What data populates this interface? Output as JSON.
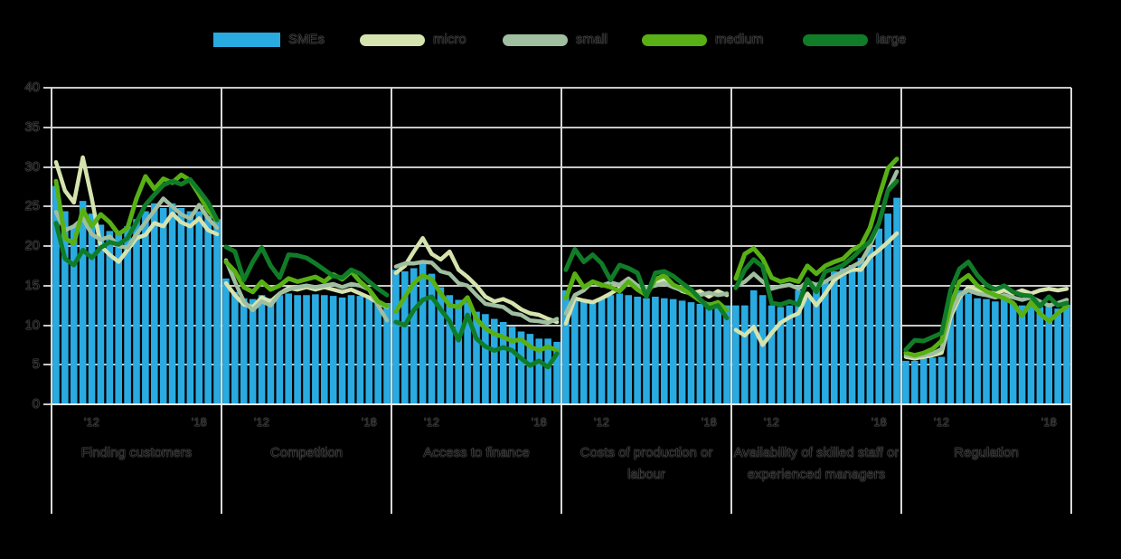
{
  "legend": [
    {
      "label": "SMEs",
      "color": "#29ABE2",
      "type": "bar"
    },
    {
      "label": "micro",
      "color": "#D5E3AE",
      "type": "line"
    },
    {
      "label": "small",
      "color": "#9FBFA0",
      "type": "line"
    },
    {
      "label": "medium",
      "color": "#58B014",
      "type": "line"
    },
    {
      "label": "large",
      "color": "#107C28",
      "type": "line"
    }
  ],
  "colors": {
    "bars": "#29ABE2",
    "micro": "#D5E3AE",
    "small": "#9FBFA0",
    "medium": "#58B014",
    "large": "#107C28",
    "gridline": "#C9C9C9",
    "separator": "#D8D8D8",
    "baseline": "#ECECEC"
  },
  "y_axis": {
    "min": 0,
    "max": 40,
    "step": 5,
    "labels": [
      40,
      35,
      30,
      25,
      20,
      15,
      10,
      5,
      0
    ]
  },
  "x_ticks": [
    {
      "label": "'12",
      "point_index": 4
    },
    {
      "label": "'18",
      "point_index": 16
    }
  ],
  "chart_data": {
    "type": "bar",
    "subtype": "bar-plus-line-panels",
    "ylim": [
      0,
      40
    ],
    "y_step": 5,
    "grid": "horizontal",
    "legend_position": "top",
    "n_points_per_panel": 19,
    "bar_series_name": "SMEs",
    "line_series_names": [
      "micro",
      "small",
      "medium",
      "large"
    ],
    "panels": [
      {
        "title": "Finding customers",
        "SMEs": [
          27.6,
          24.4,
          22.5,
          25.7,
          24.1,
          22.7,
          21.9,
          21.9,
          22.5,
          23.4,
          24.4,
          25.4,
          24.8,
          25.4,
          24.8,
          24.4,
          24.4,
          23.8,
          23.4
        ],
        "micro": [
          30.6,
          27.0,
          25.5,
          31.2,
          26.0,
          20.0,
          18.9,
          18.0,
          19.5,
          21.0,
          21.4,
          22.9,
          22.5,
          24.1,
          23.0,
          22.5,
          23.5,
          22.0,
          21.5
        ],
        "small": [
          24.3,
          22.0,
          22.5,
          23.5,
          21.5,
          20.8,
          21.2,
          20.0,
          19.8,
          21.5,
          23.0,
          24.5,
          26.0,
          25.0,
          24.0,
          23.5,
          25.2,
          23.5,
          22.3
        ],
        "medium": [
          28.2,
          21.0,
          20.3,
          24.6,
          22.5,
          24.0,
          23.0,
          21.5,
          22.3,
          26.0,
          28.8,
          27.2,
          28.5,
          28.0,
          29.0,
          28.3,
          26.5,
          24.5,
          23.2
        ],
        "large": [
          22.9,
          18.4,
          17.6,
          19.5,
          18.5,
          19.8,
          20.5,
          20.2,
          21.0,
          23.0,
          25.2,
          26.5,
          27.7,
          28.2,
          27.8,
          28.4,
          27.0,
          25.5,
          23.3
        ]
      },
      {
        "title": "Competition",
        "SMEs": [
          15.9,
          14.2,
          13.4,
          13.3,
          13.8,
          13.4,
          13.8,
          14.0,
          13.8,
          13.8,
          13.9,
          13.8,
          13.7,
          13.5,
          13.8,
          13.7,
          13.5,
          13.0,
          12.8
        ],
        "micro": [
          15.3,
          13.8,
          12.6,
          12.3,
          13.5,
          13.0,
          14.0,
          14.7,
          14.5,
          14.8,
          14.5,
          14.8,
          14.5,
          14.2,
          14.5,
          14.0,
          13.5,
          12.8,
          12.3
        ],
        "small": [
          18.2,
          15.5,
          13.0,
          11.9,
          13.0,
          12.5,
          14.0,
          14.5,
          14.8,
          15.0,
          14.8,
          15.0,
          15.2,
          14.8,
          15.2,
          15.0,
          14.5,
          12.5,
          10.6
        ],
        "medium": [
          18.0,
          16.8,
          14.8,
          14.2,
          15.5,
          14.5,
          15.0,
          15.9,
          15.5,
          15.8,
          16.1,
          15.5,
          16.4,
          15.8,
          16.8,
          15.5,
          14.5,
          13.0,
          12.4
        ],
        "large": [
          19.9,
          19.3,
          15.7,
          18.0,
          19.8,
          17.5,
          16.0,
          18.9,
          18.8,
          18.5,
          17.8,
          17.0,
          16.2,
          16.0,
          17.0,
          16.5,
          15.5,
          14.6,
          13.8
        ]
      },
      {
        "title": "Access to finance",
        "SMEs": [
          17.0,
          16.8,
          17.2,
          17.8,
          16.5,
          14.8,
          13.8,
          13.2,
          12.9,
          11.7,
          11.4,
          10.8,
          10.4,
          9.8,
          9.2,
          8.9,
          8.3,
          8.3,
          7.9
        ],
        "micro": [
          16.6,
          17.5,
          19.3,
          21.0,
          19.0,
          18.3,
          19.3,
          17.0,
          16.1,
          15.0,
          13.6,
          13.0,
          13.3,
          12.8,
          12.0,
          11.5,
          11.3,
          10.8,
          10.4
        ],
        "small": [
          17.4,
          17.8,
          17.8,
          18.0,
          17.9,
          16.8,
          16.5,
          15.3,
          15.0,
          13.8,
          12.7,
          12.5,
          12.3,
          11.5,
          11.3,
          10.6,
          10.5,
          10.3,
          10.8
        ],
        "medium": [
          11.7,
          13.6,
          15.3,
          16.3,
          15.8,
          14.0,
          12.5,
          12.3,
          13.5,
          10.8,
          9.6,
          8.9,
          8.5,
          8.0,
          8.2,
          7.3,
          6.8,
          7.3,
          6.8
        ],
        "large": [
          10.4,
          10.0,
          11.9,
          13.2,
          13.6,
          12.0,
          10.5,
          8.1,
          11.3,
          8.3,
          7.3,
          6.8,
          7.2,
          6.8,
          5.8,
          4.9,
          5.5,
          4.7,
          6.4
        ]
      },
      {
        "title": "Costs of production or labour",
        "SMEs": [
          14.4,
          13.4,
          13.1,
          12.9,
          13.4,
          13.8,
          14.0,
          13.8,
          13.6,
          13.4,
          13.6,
          13.4,
          13.3,
          13.1,
          12.9,
          12.7,
          12.9,
          12.7,
          12.5
        ],
        "micro": [
          10.2,
          13.4,
          13.1,
          12.9,
          13.4,
          14.0,
          14.7,
          15.3,
          15.0,
          14.3,
          15.3,
          15.7,
          15.0,
          14.3,
          14.0,
          14.3,
          13.6,
          14.3,
          13.8
        ],
        "small": [
          11.5,
          13.8,
          14.4,
          15.5,
          15.0,
          15.4,
          15.1,
          15.9,
          15.0,
          14.7,
          15.0,
          15.3,
          14.8,
          14.4,
          14.1,
          13.8,
          14.1,
          13.8,
          14.0
        ],
        "medium": [
          13.4,
          16.5,
          14.8,
          15.5,
          15.1,
          14.8,
          14.3,
          15.5,
          14.5,
          13.8,
          15.8,
          16.3,
          15.1,
          14.6,
          13.9,
          13.1,
          12.5,
          12.9,
          11.9
        ],
        "large": [
          17.0,
          19.6,
          18.0,
          18.9,
          17.8,
          15.7,
          17.6,
          17.2,
          16.6,
          13.6,
          16.6,
          16.8,
          16.2,
          15.3,
          14.5,
          13.3,
          12.1,
          12.5,
          10.9
        ]
      },
      {
        "title": "Availability of skilled staff or experienced managers",
        "SMEs": [
          12.5,
          12.5,
          14.4,
          13.8,
          12.5,
          12.3,
          12.5,
          14.4,
          13.4,
          14.9,
          15.7,
          16.8,
          17.2,
          17.6,
          18.5,
          19.9,
          22.2,
          24.1,
          26.1
        ],
        "micro": [
          9.4,
          8.7,
          9.8,
          7.5,
          9.0,
          10.3,
          11.0,
          11.5,
          14.0,
          12.5,
          14.0,
          15.7,
          16.5,
          17.0,
          17.0,
          18.6,
          19.5,
          20.5,
          21.6
        ],
        "small": [
          14.9,
          15.5,
          16.5,
          15.5,
          14.6,
          14.9,
          15.1,
          14.6,
          15.5,
          15.1,
          15.5,
          16.2,
          16.8,
          17.4,
          18.0,
          20.0,
          22.9,
          27.0,
          29.4
        ],
        "medium": [
          15.9,
          19.0,
          19.7,
          18.4,
          16.0,
          15.5,
          15.8,
          15.5,
          17.5,
          16.5,
          17.5,
          18.0,
          18.4,
          19.5,
          20.1,
          22.3,
          26.2,
          29.8,
          31.0
        ],
        "large": [
          14.7,
          17.0,
          18.3,
          17.4,
          12.8,
          12.6,
          13.0,
          12.6,
          15.8,
          14.2,
          16.8,
          17.1,
          17.6,
          18.5,
          19.6,
          20.6,
          22.9,
          27.0,
          28.2
        ]
      },
      {
        "title": "Regulation",
        "SMEs": [
          5.5,
          5.5,
          5.8,
          5.9,
          6.0,
          13.2,
          14.4,
          14.0,
          13.4,
          13.3,
          13.0,
          13.3,
          12.8,
          12.5,
          12.6,
          12.3,
          12.5,
          12.1,
          12.6
        ],
        "micro": [
          6.0,
          5.8,
          6.0,
          6.2,
          6.5,
          11.0,
          13.5,
          14.8,
          14.5,
          14.2,
          14.0,
          14.4,
          14.0,
          14.4,
          14.0,
          14.4,
          14.6,
          14.4,
          14.6
        ],
        "small": [
          6.2,
          6.0,
          6.2,
          6.4,
          7.0,
          11.5,
          13.8,
          14.4,
          14.0,
          13.8,
          13.5,
          13.8,
          13.5,
          13.2,
          13.5,
          13.0,
          12.5,
          12.8,
          13.2
        ],
        "medium": [
          6.5,
          6.2,
          6.5,
          7.0,
          8.0,
          12.5,
          15.5,
          16.3,
          15.0,
          14.3,
          13.8,
          13.4,
          12.8,
          11.2,
          12.9,
          11.5,
          10.5,
          11.5,
          12.4
        ],
        "large": [
          6.9,
          8.1,
          8.0,
          8.5,
          9.0,
          14.4,
          17.1,
          18.0,
          16.3,
          15.1,
          14.5,
          15.0,
          14.2,
          13.8,
          13.7,
          12.4,
          13.6,
          12.5,
          12.8
        ]
      }
    ]
  }
}
